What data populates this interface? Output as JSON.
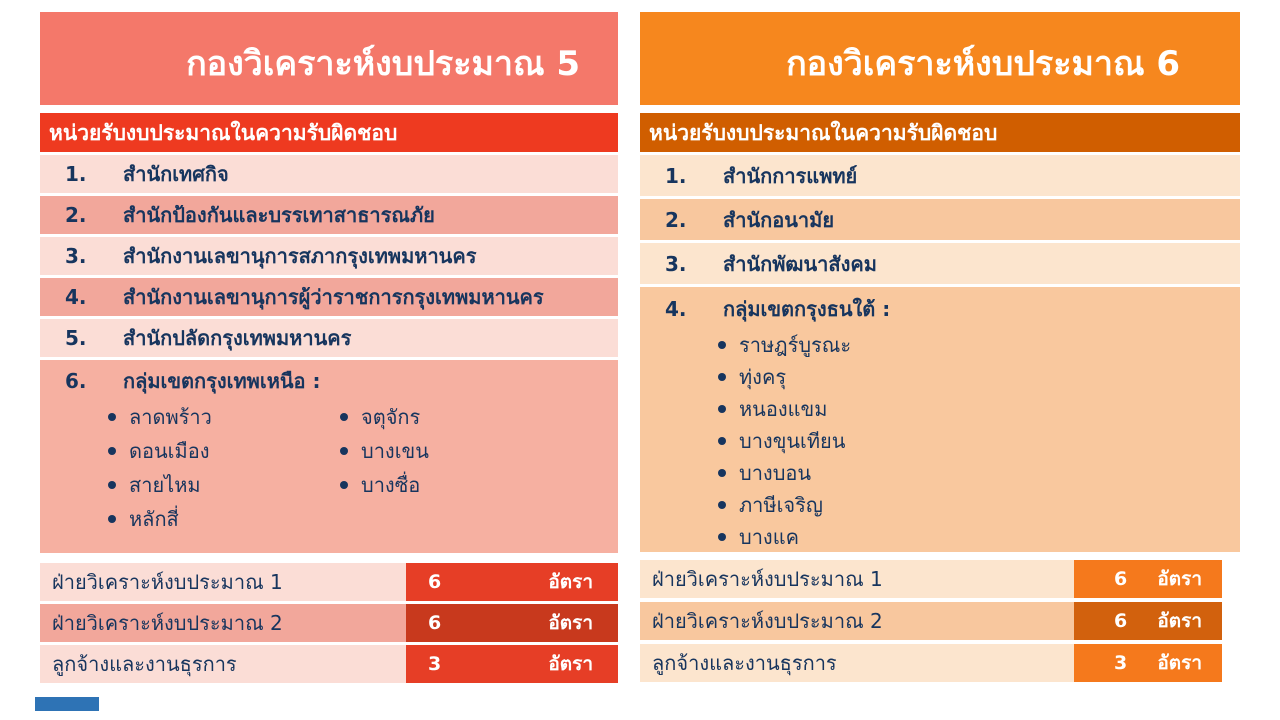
{
  "slide": {
    "background": "#FFFFFF",
    "footer_accent_color": "#2E73B5"
  },
  "panels": [
    {
      "title": "กองวิเคราะห์งบประมาณ 5",
      "subtitle": "หน่วยรับงบประมาณในความรับผิดชอบ",
      "colors": {
        "header-bg": "#F4786A",
        "subheader-bg": "#EE3A20",
        "row-light": "#FBDDD6",
        "row-medium": "#F2A79B",
        "block-bg": "#F6B0A1",
        "count-bg": "#E63E26",
        "count-bg-dark": "#C8391D",
        "text": "#17355E"
      },
      "units": [
        {
          "no": "1.",
          "name": "สำนักเทศกิจ"
        },
        {
          "no": "2.",
          "name": "สำนักป้องกันและบรรเทาสาธารณภัย"
        },
        {
          "no": "3.",
          "name": "สำนักงานเลขานุการสภากรุงเทพมหานคร"
        },
        {
          "no": "4.",
          "name": "สำนักงานเลขานุการผู้ว่าราชการกรุงเทพมหานคร"
        },
        {
          "no": "5.",
          "name": "สำนักปลัดกรุงเทพมหานคร"
        },
        {
          "no": "6.",
          "name": "กลุ่มเขตกรุงเทพเหนือ :"
        }
      ],
      "districts_col1": [
        "ลาดพร้าว",
        "ดอนเมือง",
        "สายไหม",
        "หลักสี่"
      ],
      "districts_col2": [
        "จตุจักร",
        "บางเขน",
        "บางซื่อ"
      ],
      "staff": [
        {
          "label": "ฝ่ายวิเคราะห์งบประมาณ 1",
          "count": "6",
          "unit": "อัตรา"
        },
        {
          "label": "ฝ่ายวิเคราะห์งบประมาณ 2",
          "count": "6",
          "unit": "อัตรา"
        },
        {
          "label": "ลูกจ้างและงานธุรการ",
          "count": "3",
          "unit": "อัตรา"
        }
      ]
    },
    {
      "title": "กองวิเคราะห์งบประมาณ 6",
      "subtitle": "หน่วยรับงบประมาณในความรับผิดชอบ",
      "colors": {
        "header-bg": "#F6871E",
        "subheader-bg": "#D05E00",
        "row-light": "#FCE5CE",
        "row-medium": "#F8C79E",
        "block-bg": "#F9C89E",
        "count-bg": "#F5791C",
        "count-bg-dark": "#D2610D",
        "text": "#17355E"
      },
      "units": [
        {
          "no": "1.",
          "name": "สำนักการแพทย์"
        },
        {
          "no": "2.",
          "name": "สำนักอนามัย"
        },
        {
          "no": "3.",
          "name": "สำนักพัฒนาสังคม"
        },
        {
          "no": "4.",
          "name": "กลุ่มเขตกรุงธนใต้ :"
        }
      ],
      "districts": [
        "ราษฎร์บูรณะ",
        "ทุ่งครุ",
        "หนองแขม",
        "บางขุนเทียน",
        "บางบอน",
        "ภาษีเจริญ",
        "บางแค"
      ],
      "staff": [
        {
          "label": "ฝ่ายวิเคราะห์งบประมาณ 1",
          "count": "6",
          "unit": "อัตรา"
        },
        {
          "label": "ฝ่ายวิเคราะห์งบประมาณ 2",
          "count": "6",
          "unit": "อัตรา"
        },
        {
          "label": "ลูกจ้างและงานธุรการ",
          "count": "3",
          "unit": "อัตรา"
        }
      ]
    }
  ]
}
